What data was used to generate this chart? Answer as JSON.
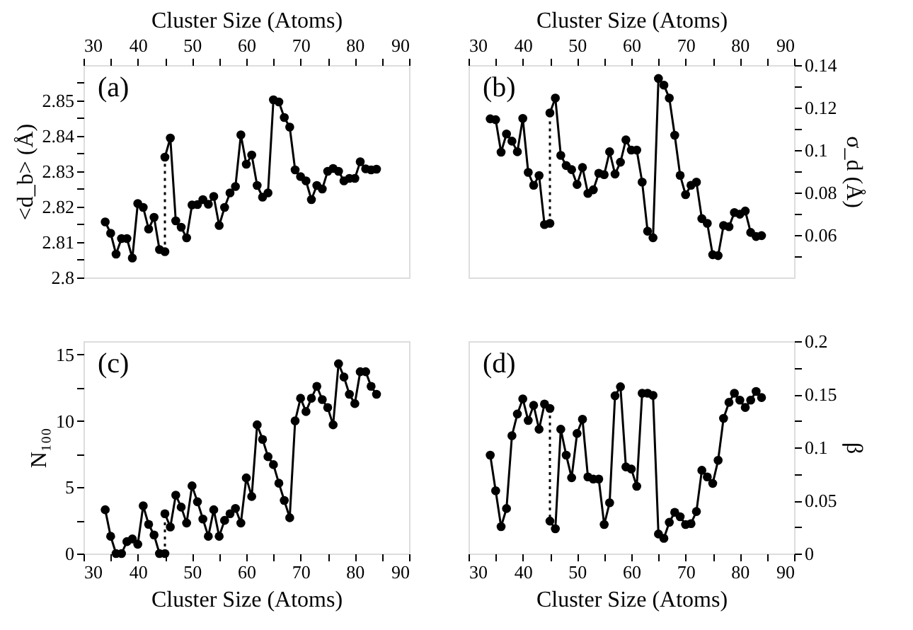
{
  "chart_data": [
    {
      "type": "line",
      "annotations": [
        "(a)"
      ],
      "xlabel": "Cluster Size (Atoms)",
      "xlim": [
        30,
        90
      ],
      "xticks": [
        30,
        {
          "value": 35,
          "label": null
        },
        40,
        {
          "value": 45,
          "label": null
        },
        50,
        {
          "value": 55,
          "label": null
        },
        60,
        {
          "value": 65,
          "label": null
        },
        70,
        {
          "value": 75,
          "label": null
        },
        80,
        {
          "value": 85,
          "label": null
        },
        90
      ],
      "ylabel": "<d_b> (Å)",
      "ylim": [
        2.8,
        2.86
      ],
      "yticks": [
        2.8,
        {
          "value": 2.805,
          "label": null
        },
        2.81,
        {
          "value": 2.815,
          "label": null
        },
        2.82,
        {
          "value": 2.825,
          "label": null
        },
        2.83,
        {
          "value": 2.835,
          "label": null
        },
        2.84,
        {
          "value": 2.845,
          "label": null
        },
        2.85,
        {
          "value": 2.855,
          "label": null
        }
      ],
      "marker": "circle",
      "series": [
        {
          "color": "#000000",
          "x": [
            34,
            35,
            36,
            37,
            38,
            39,
            40,
            41,
            42,
            43,
            44,
            45
          ],
          "values": [
            2.8157,
            2.8125,
            2.8066,
            2.811,
            2.811,
            2.8055,
            2.8209,
            2.8198,
            2.8137,
            2.817,
            2.8079,
            2.8073
          ]
        },
        {
          "color": "#000000",
          "x": [
            45,
            46,
            47,
            48,
            49,
            50,
            51,
            52,
            53,
            54,
            55,
            56,
            57,
            58,
            59,
            60,
            61,
            62,
            63,
            64,
            65,
            66,
            67,
            68,
            69,
            70,
            71,
            72,
            73,
            74,
            75,
            76,
            77,
            78,
            79,
            80,
            81,
            82,
            83,
            84
          ],
          "values": [
            2.834,
            2.8394,
            2.816,
            2.8142,
            2.8112,
            2.8205,
            2.8206,
            2.822,
            2.8207,
            2.8229,
            2.8147,
            2.8198,
            2.8239,
            2.8257,
            2.8403,
            2.832,
            2.8346,
            2.826,
            2.8227,
            2.8239,
            2.8502,
            2.8496,
            2.8452,
            2.8425,
            2.8304,
            2.8285,
            2.8273,
            2.822,
            2.826,
            2.825,
            2.83,
            2.8308,
            2.83,
            2.8273,
            2.828,
            2.828,
            2.8327,
            2.8307,
            2.8304,
            2.8306
          ]
        },
        {
          "color": "#000000",
          "x": [
            45,
            45
          ],
          "values": [
            2.8073,
            2.834
          ],
          "line_style": "dotted",
          "marker": "none"
        }
      ]
    },
    {
      "type": "line",
      "annotations": [
        "(b)"
      ],
      "xlabel": "Cluster Size (Atoms)",
      "xlim": [
        30,
        90
      ],
      "xticks": [
        30,
        {
          "value": 35,
          "label": null
        },
        40,
        {
          "value": 45,
          "label": null
        },
        50,
        {
          "value": 55,
          "label": null
        },
        60,
        {
          "value": 65,
          "label": null
        },
        70,
        {
          "value": 75,
          "label": null
        },
        80,
        {
          "value": 85,
          "label": null
        },
        90
      ],
      "y2label": "σ_d (Å)",
      "y2lim": [
        0.04,
        0.14
      ],
      "y2ticks": [
        {
          "value": 0.05,
          "label": null
        },
        0.06,
        {
          "value": 0.07,
          "label": null
        },
        0.08,
        {
          "value": 0.09,
          "label": null
        },
        0.1,
        {
          "value": 0.11,
          "label": null
        },
        0.12,
        {
          "value": 0.13,
          "label": null
        },
        0.14
      ],
      "marker": "circle",
      "series": [
        {
          "color": "#000000",
          "axis": "y2",
          "x": [
            34,
            35,
            36,
            37,
            38,
            39,
            40,
            41,
            42,
            43,
            44,
            45
          ],
          "values": [
            0.1147,
            0.1143,
            0.099,
            0.1076,
            0.1042,
            0.0992,
            0.1149,
            0.0895,
            0.0834,
            0.088,
            0.0649,
            0.0655
          ]
        },
        {
          "color": "#000000",
          "axis": "y2",
          "x": [
            45,
            46,
            47,
            48,
            49,
            50,
            51,
            52,
            53,
            54,
            55,
            56,
            57,
            58,
            59,
            60,
            61,
            62,
            63,
            64,
            65,
            66,
            67,
            68,
            69,
            70,
            71,
            72,
            73,
            74,
            75,
            76,
            77,
            78,
            79,
            80,
            81,
            82,
            83,
            84
          ],
          "values": [
            0.1175,
            0.1245,
            0.0975,
            0.0927,
            0.0908,
            0.0838,
            0.0918,
            0.0796,
            0.0813,
            0.0891,
            0.0884,
            0.0992,
            0.0887,
            0.0943,
            0.1048,
            0.1,
            0.1,
            0.0849,
            0.0618,
            0.0587,
            0.1337,
            0.1306,
            0.1245,
            0.107,
            0.0881,
            0.079,
            0.0834,
            0.0849,
            0.0677,
            0.0655,
            0.0507,
            0.0503,
            0.0645,
            0.0639,
            0.0706,
            0.0698,
            0.0713,
            0.0612,
            0.0593,
            0.0597
          ]
        },
        {
          "color": "#000000",
          "axis": "y2",
          "x": [
            45,
            45
          ],
          "values": [
            0.0655,
            0.1175
          ],
          "line_style": "dotted",
          "marker": "none"
        }
      ]
    },
    {
      "type": "line",
      "annotations": [
        "(c)"
      ],
      "xlabel": "Cluster Size (Atoms)",
      "xlim": [
        30,
        90
      ],
      "xticks": [
        30,
        {
          "value": 35,
          "label": null
        },
        40,
        {
          "value": 45,
          "label": null
        },
        50,
        {
          "value": 55,
          "label": null
        },
        60,
        {
          "value": 65,
          "label": null
        },
        70,
        {
          "value": 75,
          "label": null
        },
        80,
        {
          "value": 85,
          "label": null
        },
        90
      ],
      "ylabel": "N₁₀₀",
      "ylim": [
        0,
        16
      ],
      "yticks": [
        0,
        {
          "value": 2.5,
          "label": null
        },
        5,
        {
          "value": 7.5,
          "label": null
        },
        10,
        {
          "value": 12.5,
          "label": null
        },
        15
      ],
      "marker": "circle",
      "series": [
        {
          "color": "#000000",
          "x": [
            34,
            35,
            36,
            37,
            38,
            39,
            40,
            41,
            42,
            43,
            44,
            45
          ],
          "values": [
            3.3,
            1.3,
            0,
            0,
            0.9,
            1.1,
            0.7,
            3.6,
            2.2,
            1.4,
            0,
            0
          ]
        },
        {
          "color": "#000000",
          "x": [
            45,
            46,
            47,
            48,
            49,
            50,
            51,
            52,
            53,
            54,
            55,
            56,
            57,
            58,
            59,
            60,
            61,
            62,
            63,
            64,
            65,
            66,
            67,
            68,
            69,
            70,
            71,
            72,
            73,
            74,
            75,
            76,
            77,
            78,
            79,
            80,
            81,
            82,
            83,
            84
          ],
          "values": [
            3.0,
            2.0,
            4.4,
            3.5,
            2.3,
            5.1,
            3.9,
            2.6,
            1.3,
            3.3,
            1.3,
            2.5,
            3.0,
            3.4,
            2.3,
            5.7,
            4.3,
            9.7,
            8.6,
            7.3,
            6.7,
            5.3,
            4.0,
            2.7,
            10.0,
            11.7,
            10.7,
            11.7,
            12.6,
            11.6,
            11.0,
            9.7,
            14.3,
            13.3,
            12.0,
            11.3,
            13.7,
            13.7,
            12.6,
            12.0
          ]
        },
        {
          "color": "#000000",
          "x": [
            45,
            45
          ],
          "values": [
            0,
            3.0
          ],
          "line_style": "dotted",
          "marker": "none"
        }
      ]
    },
    {
      "type": "line",
      "annotations": [
        "(d)"
      ],
      "xlabel": "Cluster Size (Atoms)",
      "xlim": [
        30,
        90
      ],
      "xticks": [
        30,
        {
          "value": 35,
          "label": null
        },
        40,
        {
          "value": 45,
          "label": null
        },
        50,
        {
          "value": 55,
          "label": null
        },
        60,
        {
          "value": 65,
          "label": null
        },
        70,
        {
          "value": 75,
          "label": null
        },
        80,
        {
          "value": 85,
          "label": null
        },
        90
      ],
      "y2label": "β",
      "y2lim": [
        0,
        0.2
      ],
      "y2ticks": [
        0,
        {
          "value": 0.025,
          "label": null
        },
        0.05,
        {
          "value": 0.075,
          "label": null
        },
        0.1,
        {
          "value": 0.125,
          "label": null
        },
        0.15,
        {
          "value": 0.175,
          "label": null
        },
        0.2
      ],
      "marker": "circle",
      "series": [
        {
          "color": "#000000",
          "axis": "y2",
          "x": [
            34,
            35,
            36,
            37,
            38,
            39,
            40,
            41,
            42,
            43,
            44,
            45
          ],
          "values": [
            0.0927,
            0.0592,
            0.0253,
            0.0424,
            0.111,
            0.1314,
            0.1457,
            0.1253,
            0.1396,
            0.1171,
            0.1408,
            0.1367
          ]
        },
        {
          "color": "#000000",
          "axis": "y2",
          "x": [
            45,
            46,
            47,
            48,
            49,
            50,
            51,
            52,
            53,
            54,
            55,
            56,
            57,
            58,
            59,
            60,
            61,
            62,
            63,
            64,
            65,
            66,
            67,
            68,
            69,
            70,
            71,
            72,
            73,
            74,
            75,
            76,
            77,
            78,
            79,
            80,
            81,
            82,
            83,
            84
          ],
          "values": [
            0.0306,
            0.0233,
            0.1171,
            0.0927,
            0.0714,
            0.1131,
            0.1265,
            0.0722,
            0.0702,
            0.0702,
            0.0273,
            0.0478,
            0.1486,
            0.1571,
            0.0816,
            0.0796,
            0.0633,
            0.151,
            0.151,
            0.149,
            0.0184,
            0.0143,
            0.0294,
            0.0388,
            0.0347,
            0.0273,
            0.0282,
            0.0396,
            0.0784,
            0.0722,
            0.0661,
            0.0878,
            0.1273,
            0.1424,
            0.151,
            0.1445,
            0.1376,
            0.1445,
            0.1527,
            0.1469
          ]
        },
        {
          "color": "#000000",
          "axis": "y2",
          "x": [
            45,
            45
          ],
          "values": [
            0.1367,
            0.0306
          ],
          "line_style": "dotted",
          "marker": "none"
        }
      ]
    }
  ]
}
